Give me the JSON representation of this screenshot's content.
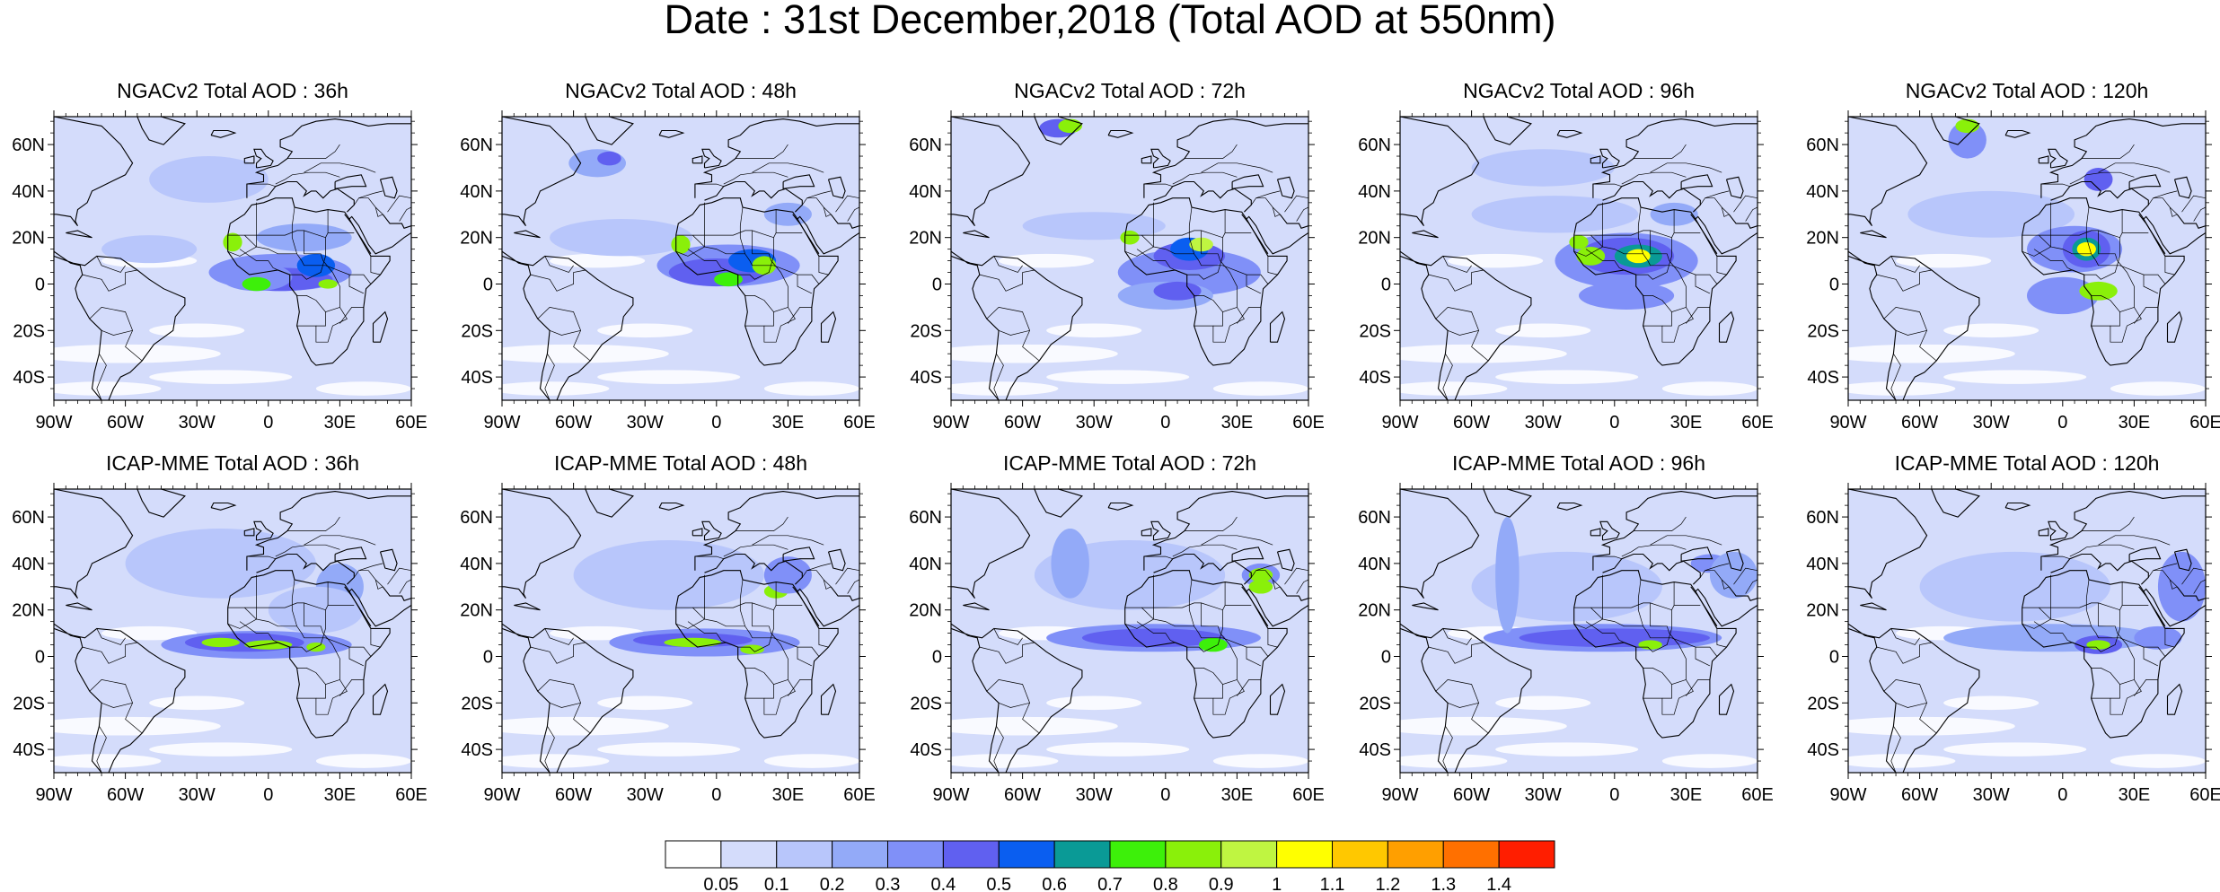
{
  "title": "Date : 31st December,2018 (Total AOD at 550nm)",
  "axes": {
    "lon_labels": [
      "90W",
      "60W",
      "30W",
      "0",
      "30E",
      "60E"
    ],
    "lat_labels": [
      "60N",
      "40N",
      "20N",
      "0",
      "20S",
      "40S"
    ]
  },
  "panels": [
    {
      "title": "NGACv2 Total AOD : 36h"
    },
    {
      "title": "NGACv2 Total AOD : 48h"
    },
    {
      "title": "NGACv2 Total AOD : 72h"
    },
    {
      "title": "NGACv2 Total AOD : 96h"
    },
    {
      "title": "NGACv2 Total AOD : 120h"
    },
    {
      "title": "ICAP-MME Total AOD : 36h"
    },
    {
      "title": "ICAP-MME Total AOD : 48h"
    },
    {
      "title": "ICAP-MME Total AOD : 72h"
    },
    {
      "title": "ICAP-MME Total AOD : 96h"
    },
    {
      "title": "ICAP-MME Total AOD : 120h"
    }
  ],
  "colorbar": {
    "labels": [
      "0.05",
      "0.1",
      "0.2",
      "0.3",
      "0.4",
      "0.5",
      "0.6",
      "0.7",
      "0.8",
      "0.9",
      "1",
      "1.1",
      "1.2",
      "1.3",
      "1.4"
    ],
    "colors": [
      "#ffffff",
      "#d4dcfb",
      "#b8c6fb",
      "#93aaf8",
      "#8090f8",
      "#6060f0",
      "#0a5ef0",
      "#0a9a96",
      "#3df00a",
      "#8af00a",
      "#bff541",
      "#ffff00",
      "#ffc800",
      "#ff9f00",
      "#ff7000",
      "#ff1e00"
    ]
  },
  "palette": {
    "land_line": "#000000",
    "background": "#ffffff"
  }
}
